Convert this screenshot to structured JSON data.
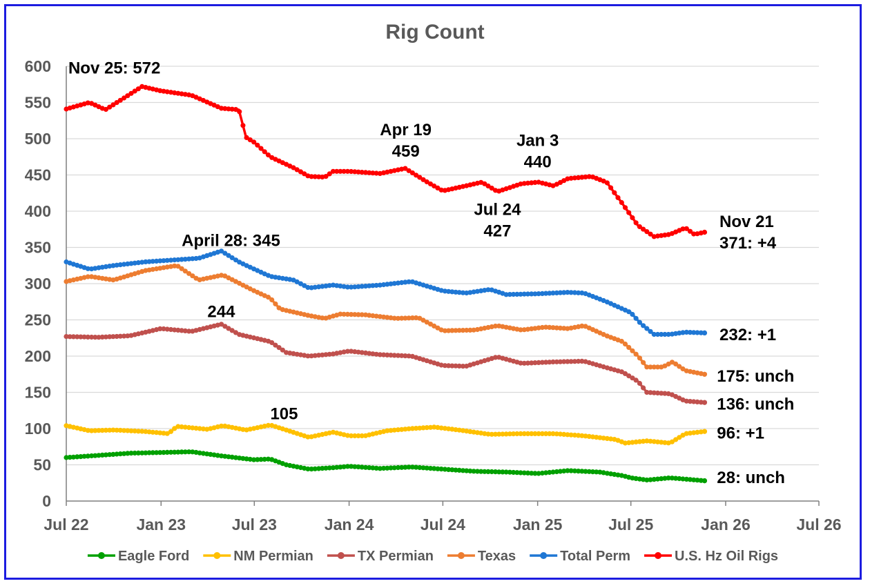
{
  "chart_data": {
    "type": "line",
    "title": "Rig Count",
    "xlabel": "",
    "ylabel": "",
    "ylim": [
      0,
      600
    ],
    "yticks": [
      0,
      50,
      100,
      150,
      200,
      250,
      300,
      350,
      400,
      450,
      500,
      550,
      600
    ],
    "xlim": [
      "2022-07",
      "2026-07"
    ],
    "xticks": [
      {
        "date": "2022-07",
        "label": "Jul 22"
      },
      {
        "date": "2023-01",
        "label": "Jan 23"
      },
      {
        "date": "2023-07",
        "label": "Jul 23"
      },
      {
        "date": "2024-01",
        "label": "Jan 24"
      },
      {
        "date": "2024-07",
        "label": "Jul 24"
      },
      {
        "date": "2025-01",
        "label": "Jan 25"
      },
      {
        "date": "2025-07",
        "label": "Jul 25"
      },
      {
        "date": "2026-01",
        "label": "Jan 26"
      },
      {
        "date": "2026-07",
        "label": "Jul 26"
      }
    ],
    "grid": "horizontal",
    "legend": "bottom",
    "series": [
      {
        "name": "Eagle Ford",
        "color": "#00a000",
        "points": [
          [
            "2022-07-01",
            60
          ],
          [
            "2022-09-01",
            63
          ],
          [
            "2022-11-01",
            66
          ],
          [
            "2023-01-01",
            67
          ],
          [
            "2023-03-01",
            68
          ],
          [
            "2023-05-01",
            62
          ],
          [
            "2023-07-01",
            57
          ],
          [
            "2023-08-01",
            58
          ],
          [
            "2023-09-01",
            50
          ],
          [
            "2023-10-15",
            44
          ],
          [
            "2023-12-01",
            46
          ],
          [
            "2024-01-01",
            48
          ],
          [
            "2024-03-01",
            45
          ],
          [
            "2024-05-01",
            47
          ],
          [
            "2024-07-01",
            44
          ],
          [
            "2024-09-01",
            41
          ],
          [
            "2024-11-01",
            40
          ],
          [
            "2025-01-01",
            38
          ],
          [
            "2025-03-01",
            42
          ],
          [
            "2025-05-01",
            40
          ],
          [
            "2025-06-15",
            35
          ],
          [
            "2025-07-01",
            32
          ],
          [
            "2025-08-01",
            29
          ],
          [
            "2025-09-15",
            32
          ],
          [
            "2025-11-21",
            28
          ]
        ]
      },
      {
        "name": "NM Permian",
        "color": "#ffc000",
        "points": [
          [
            "2022-07-01",
            104
          ],
          [
            "2022-08-15",
            97
          ],
          [
            "2022-10-01",
            98
          ],
          [
            "2022-12-01",
            96
          ],
          [
            "2023-01-15",
            93
          ],
          [
            "2023-02-01",
            103
          ],
          [
            "2023-04-01",
            99
          ],
          [
            "2023-05-01",
            104
          ],
          [
            "2023-06-15",
            98
          ],
          [
            "2023-08-01",
            105
          ],
          [
            "2023-09-01",
            98
          ],
          [
            "2023-10-15",
            88
          ],
          [
            "2023-12-01",
            95
          ],
          [
            "2024-01-01",
            90
          ],
          [
            "2024-02-01",
            90
          ],
          [
            "2024-03-15",
            97
          ],
          [
            "2024-05-01",
            100
          ],
          [
            "2024-06-15",
            102
          ],
          [
            "2024-08-01",
            98
          ],
          [
            "2024-10-01",
            92
          ],
          [
            "2024-12-01",
            93
          ],
          [
            "2025-02-01",
            93
          ],
          [
            "2025-04-01",
            90
          ],
          [
            "2025-06-01",
            85
          ],
          [
            "2025-06-20",
            80
          ],
          [
            "2025-08-01",
            83
          ],
          [
            "2025-09-15",
            80
          ],
          [
            "2025-10-15",
            93
          ],
          [
            "2025-11-21",
            96
          ]
        ]
      },
      {
        "name": "TX Permian",
        "color": "#c0504d",
        "points": [
          [
            "2022-07-01",
            227
          ],
          [
            "2022-09-01",
            226
          ],
          [
            "2022-11-01",
            228
          ],
          [
            "2023-01-01",
            238
          ],
          [
            "2023-03-01",
            234
          ],
          [
            "2023-04-28",
            244
          ],
          [
            "2023-06-01",
            230
          ],
          [
            "2023-08-01",
            220
          ],
          [
            "2023-09-01",
            205
          ],
          [
            "2023-10-15",
            200
          ],
          [
            "2023-12-01",
            203
          ],
          [
            "2024-01-01",
            207
          ],
          [
            "2024-03-01",
            202
          ],
          [
            "2024-05-01",
            200
          ],
          [
            "2024-07-01",
            187
          ],
          [
            "2024-08-15",
            186
          ],
          [
            "2024-10-15",
            199
          ],
          [
            "2024-12-01",
            190
          ],
          [
            "2025-02-01",
            192
          ],
          [
            "2025-04-01",
            193
          ],
          [
            "2025-05-15",
            184
          ],
          [
            "2025-06-15",
            178
          ],
          [
            "2025-07-15",
            165
          ],
          [
            "2025-08-01",
            150
          ],
          [
            "2025-09-15",
            148
          ],
          [
            "2025-10-15",
            138
          ],
          [
            "2025-11-21",
            136
          ]
        ]
      },
      {
        "name": "Texas",
        "color": "#ed7d31",
        "points": [
          [
            "2022-07-01",
            303
          ],
          [
            "2022-08-15",
            310
          ],
          [
            "2022-10-01",
            305
          ],
          [
            "2022-12-01",
            318
          ],
          [
            "2023-02-01",
            325
          ],
          [
            "2023-03-15",
            305
          ],
          [
            "2023-05-01",
            312
          ],
          [
            "2023-07-01",
            290
          ],
          [
            "2023-08-01",
            280
          ],
          [
            "2023-08-20",
            265
          ],
          [
            "2023-10-15",
            256
          ],
          [
            "2023-11-15",
            252
          ],
          [
            "2023-12-15",
            258
          ],
          [
            "2024-02-01",
            257
          ],
          [
            "2024-04-01",
            252
          ],
          [
            "2024-05-15",
            253
          ],
          [
            "2024-07-01",
            235
          ],
          [
            "2024-09-01",
            236
          ],
          [
            "2024-10-15",
            242
          ],
          [
            "2024-12-01",
            236
          ],
          [
            "2025-01-15",
            240
          ],
          [
            "2025-03-01",
            238
          ],
          [
            "2025-04-01",
            242
          ],
          [
            "2025-05-15",
            228
          ],
          [
            "2025-06-15",
            220
          ],
          [
            "2025-07-15",
            200
          ],
          [
            "2025-08-01",
            185
          ],
          [
            "2025-09-01",
            185
          ],
          [
            "2025-09-20",
            192
          ],
          [
            "2025-10-15",
            180
          ],
          [
            "2025-11-21",
            175
          ]
        ]
      },
      {
        "name": "Total Perm",
        "color": "#1f77d4",
        "points": [
          [
            "2022-07-01",
            330
          ],
          [
            "2022-08-15",
            320
          ],
          [
            "2022-10-01",
            325
          ],
          [
            "2022-12-01",
            330
          ],
          [
            "2023-02-01",
            333
          ],
          [
            "2023-03-15",
            335
          ],
          [
            "2023-04-28",
            345
          ],
          [
            "2023-06-01",
            330
          ],
          [
            "2023-07-01",
            320
          ],
          [
            "2023-08-01",
            310
          ],
          [
            "2023-09-15",
            305
          ],
          [
            "2023-10-15",
            294
          ],
          [
            "2023-12-01",
            298
          ],
          [
            "2024-01-01",
            295
          ],
          [
            "2024-03-01",
            298
          ],
          [
            "2024-05-01",
            303
          ],
          [
            "2024-07-01",
            290
          ],
          [
            "2024-08-15",
            287
          ],
          [
            "2024-10-01",
            292
          ],
          [
            "2024-11-01",
            285
          ],
          [
            "2025-01-01",
            286
          ],
          [
            "2025-03-01",
            288
          ],
          [
            "2025-04-01",
            287
          ],
          [
            "2025-05-15",
            275
          ],
          [
            "2025-07-01",
            260
          ],
          [
            "2025-07-20",
            245
          ],
          [
            "2025-08-15",
            230
          ],
          [
            "2025-09-15",
            230
          ],
          [
            "2025-10-15",
            233
          ],
          [
            "2025-11-21",
            232
          ]
        ]
      },
      {
        "name": "U.S. Hz Oil Rigs",
        "color": "#ff0000",
        "points": [
          [
            "2022-07-01",
            541
          ],
          [
            "2022-08-15",
            550
          ],
          [
            "2022-09-15",
            540
          ],
          [
            "2022-11-25",
            572
          ],
          [
            "2023-01-01",
            566
          ],
          [
            "2023-03-01",
            560
          ],
          [
            "2023-04-28",
            542
          ],
          [
            "2023-06-01",
            540
          ],
          [
            "2023-06-15",
            502
          ],
          [
            "2023-07-01",
            495
          ],
          [
            "2023-08-01",
            475
          ],
          [
            "2023-09-15",
            460
          ],
          [
            "2023-10-15",
            448
          ],
          [
            "2023-11-15",
            447
          ],
          [
            "2023-12-01",
            455
          ],
          [
            "2024-01-01",
            455
          ],
          [
            "2024-03-01",
            452
          ],
          [
            "2024-04-19",
            459
          ],
          [
            "2024-06-01",
            440
          ],
          [
            "2024-07-01",
            428
          ],
          [
            "2024-08-15",
            435
          ],
          [
            "2024-09-15",
            440
          ],
          [
            "2024-10-15",
            427
          ],
          [
            "2024-12-01",
            438
          ],
          [
            "2025-01-03",
            440
          ],
          [
            "2025-02-01",
            435
          ],
          [
            "2025-03-01",
            445
          ],
          [
            "2025-04-15",
            448
          ],
          [
            "2025-05-15",
            440
          ],
          [
            "2025-06-15",
            410
          ],
          [
            "2025-07-15",
            380
          ],
          [
            "2025-08-15",
            365
          ],
          [
            "2025-09-15",
            368
          ],
          [
            "2025-10-15",
            377
          ],
          [
            "2025-11-01",
            368
          ],
          [
            "2025-11-21",
            371
          ]
        ]
      }
    ],
    "annotations": [
      {
        "lines": [
          "Nov 25: 572"
        ],
        "at": [
          "2022-07-05",
          590
        ]
      },
      {
        "lines": [
          "April 28: 345"
        ],
        "at": [
          "2023-02-10",
          352
        ]
      },
      {
        "lines": [
          "244"
        ],
        "at": [
          "2023-04-01",
          254
        ]
      },
      {
        "lines": [
          "105"
        ],
        "at": [
          "2023-08-01",
          113
        ]
      },
      {
        "lines": [
          "Apr 19",
          "459"
        ],
        "at": [
          "2024-04-20",
          505
        ]
      },
      {
        "lines": [
          "Jul 24",
          "427"
        ],
        "at": [
          "2024-10-15",
          395
        ]
      },
      {
        "lines": [
          "Jan 3",
          "440"
        ],
        "at": [
          "2025-01-01",
          490
        ]
      },
      {
        "lines": [
          "Nov 21",
          "371: +4"
        ],
        "at": [
          "2025-12-20",
          378
        ]
      },
      {
        "lines": [
          "232: +1"
        ],
        "at": [
          "2025-12-20",
          222
        ]
      },
      {
        "lines": [
          "175: unch"
        ],
        "at": [
          "2025-12-15",
          165
        ]
      },
      {
        "lines": [
          "136: unch"
        ],
        "at": [
          "2025-12-15",
          126
        ]
      },
      {
        "lines": [
          "96: +1"
        ],
        "at": [
          "2025-12-15",
          86
        ]
      },
      {
        "lines": [
          "28: unch"
        ],
        "at": [
          "2025-12-15",
          25
        ]
      }
    ]
  }
}
